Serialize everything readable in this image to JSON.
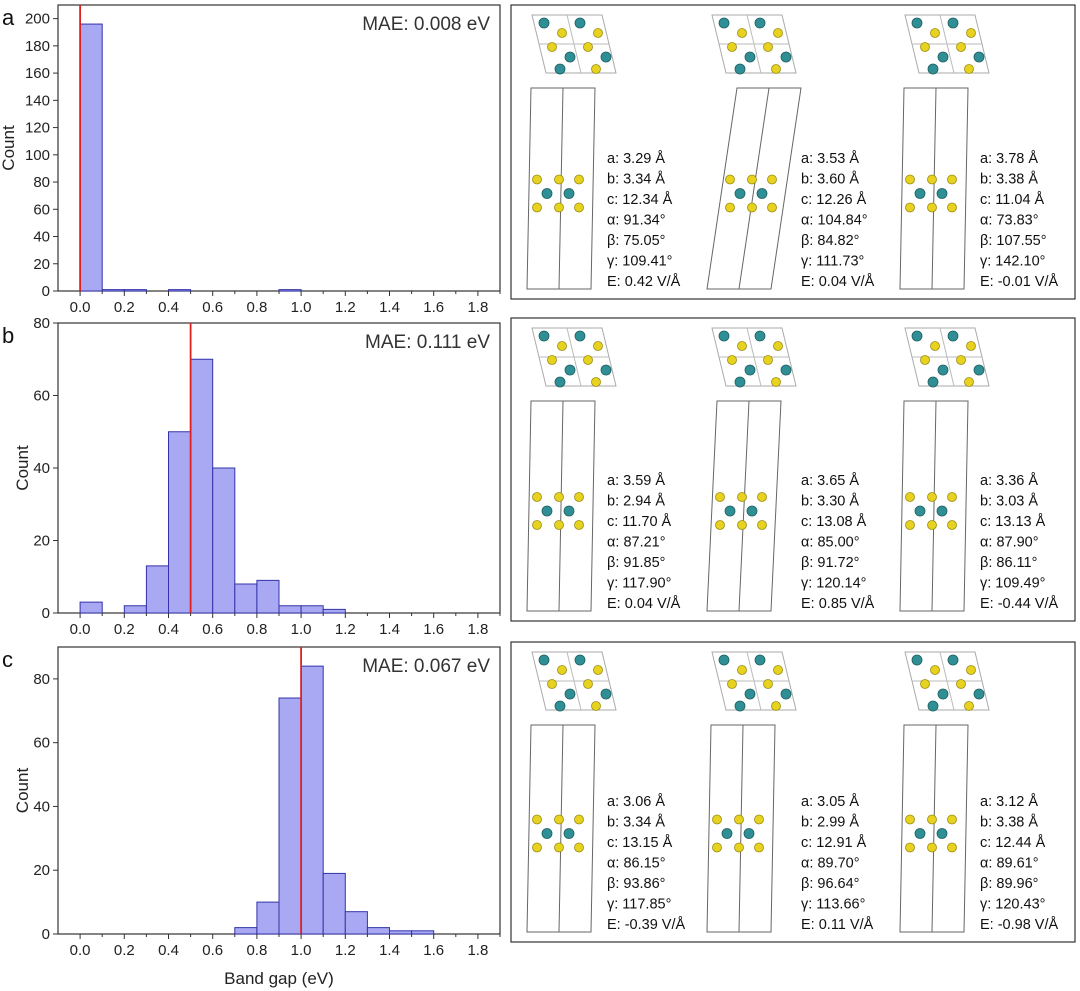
{
  "chart_data": [
    {
      "type": "bar",
      "panel": "a",
      "xlim": [
        -0.1,
        1.9
      ],
      "ylim": [
        0,
        210
      ],
      "yticks": [
        0,
        20,
        40,
        60,
        80,
        100,
        120,
        140,
        160,
        180,
        200
      ],
      "ylabel": "Count",
      "xlabel": "",
      "bin_width": 0.1,
      "bins": [
        {
          "x": 0.0,
          "count": 196
        },
        {
          "x": 0.1,
          "count": 1
        },
        {
          "x": 0.2,
          "count": 1
        },
        {
          "x": 0.4,
          "count": 1
        },
        {
          "x": 0.9,
          "count": 1
        }
      ],
      "target_line": 0.0,
      "mae": "MAE: 0.008 eV",
      "structures": [
        {
          "a": "a: 3.29 Å",
          "b": "b: 3.34 Å",
          "c": "c: 12.34 Å",
          "alpha": "α: 91.34°",
          "beta": "β: 75.05°",
          "gamma": "γ: 109.41°",
          "E": "E: 0.42 V/Å"
        },
        {
          "a": "a: 3.53 Å",
          "b": "b: 3.60 Å",
          "c": "c: 12.26 Å",
          "alpha": "α: 104.84°",
          "beta": "β: 84.82°",
          "gamma": "γ: 111.73°",
          "E": "E: 0.04 V/Å"
        },
        {
          "a": "a: 3.78 Å",
          "b": "b: 3.38 Å",
          "c": "c: 11.04 Å",
          "alpha": "α: 73.83°",
          "beta": "β: 107.55°",
          "gamma": "γ: 142.10°",
          "E": "E: -0.01 V/Å"
        }
      ]
    },
    {
      "type": "bar",
      "panel": "b",
      "xlim": [
        -0.1,
        1.9
      ],
      "ylim": [
        0,
        80
      ],
      "yticks": [
        0,
        20,
        40,
        60,
        80
      ],
      "ylabel": "Count",
      "xlabel": "",
      "bin_width": 0.1,
      "bins": [
        {
          "x": 0.0,
          "count": 3
        },
        {
          "x": 0.2,
          "count": 2
        },
        {
          "x": 0.3,
          "count": 13
        },
        {
          "x": 0.4,
          "count": 50
        },
        {
          "x": 0.5,
          "count": 70
        },
        {
          "x": 0.6,
          "count": 40
        },
        {
          "x": 0.7,
          "count": 8
        },
        {
          "x": 0.8,
          "count": 9
        },
        {
          "x": 0.9,
          "count": 2
        },
        {
          "x": 1.0,
          "count": 2
        },
        {
          "x": 1.1,
          "count": 1
        }
      ],
      "target_line": 0.5,
      "mae": "MAE: 0.111 eV",
      "structures": [
        {
          "a": "a: 3.59 Å",
          "b": "b: 2.94 Å",
          "c": "c: 11.70 Å",
          "alpha": "α: 87.21°",
          "beta": "β: 91.85°",
          "gamma": "γ: 117.90°",
          "E": "E: 0.04 V/Å"
        },
        {
          "a": "a: 3.65 Å",
          "b": "b: 3.30 Å",
          "c": "c: 13.08 Å",
          "alpha": "α: 85.00°",
          "beta": "β: 91.72°",
          "gamma": "γ: 120.14°",
          "E": "E: 0.85 V/Å"
        },
        {
          "a": "a: 3.36 Å",
          "b": "b: 3.03 Å",
          "c": "c: 13.13 Å",
          "alpha": "α: 87.90°",
          "beta": "β: 86.11°",
          "gamma": "γ: 109.49°",
          "E": "E: -0.44 V/Å"
        }
      ]
    },
    {
      "type": "bar",
      "panel": "c",
      "xlim": [
        -0.1,
        1.9
      ],
      "ylim": [
        0,
        90
      ],
      "yticks": [
        0,
        20,
        40,
        60,
        80
      ],
      "ylabel": "Count",
      "xlabel": "Band gap (eV)",
      "bin_width": 0.1,
      "bins": [
        {
          "x": 0.7,
          "count": 2
        },
        {
          "x": 0.8,
          "count": 10
        },
        {
          "x": 0.9,
          "count": 74
        },
        {
          "x": 1.0,
          "count": 84
        },
        {
          "x": 1.1,
          "count": 19
        },
        {
          "x": 1.2,
          "count": 7
        },
        {
          "x": 1.3,
          "count": 2
        },
        {
          "x": 1.4,
          "count": 1
        },
        {
          "x": 1.5,
          "count": 1
        }
      ],
      "target_line": 1.0,
      "mae": "MAE: 0.067 eV",
      "structures": [
        {
          "a": "a: 3.06 Å",
          "b": "b: 3.34 Å",
          "c": "c: 13.15 Å",
          "alpha": "α: 86.15°",
          "beta": "β: 93.86°",
          "gamma": "γ: 117.85°",
          "E": "E: -0.39 V/Å"
        },
        {
          "a": "a: 3.05 Å",
          "b": "b: 2.99 Å",
          "c": "c: 12.91 Å",
          "alpha": "α: 89.70°",
          "beta": "β: 96.64°",
          "gamma": "γ: 113.66°",
          "E": "E: 0.11 V/Å"
        },
        {
          "a": "a: 3.12 Å",
          "b": "b: 3.38 Å",
          "c": "c: 12.44 Å",
          "alpha": "α: 89.61°",
          "beta": "β: 89.96°",
          "gamma": "γ: 120.43°",
          "E": "E: -0.98 V/Å"
        }
      ]
    }
  ],
  "xticks": [
    "0.0",
    "0.2",
    "0.4",
    "0.6",
    "0.8",
    "1.0",
    "1.2",
    "1.4",
    "1.6",
    "1.8"
  ],
  "xtick_values": [
    0.0,
    0.2,
    0.4,
    0.6,
    0.8,
    1.0,
    1.2,
    1.4,
    1.6,
    1.8
  ],
  "panel_letters": [
    "a",
    "b",
    "c"
  ],
  "colors": {
    "bar_fill": "#a9a9f3",
    "bar_stroke": "#3333aa",
    "target_line": "#e02020",
    "axis": "#333333",
    "cell": "#666666",
    "mo_atom": "#2f8f95",
    "s_atom": "#e6d21f"
  }
}
